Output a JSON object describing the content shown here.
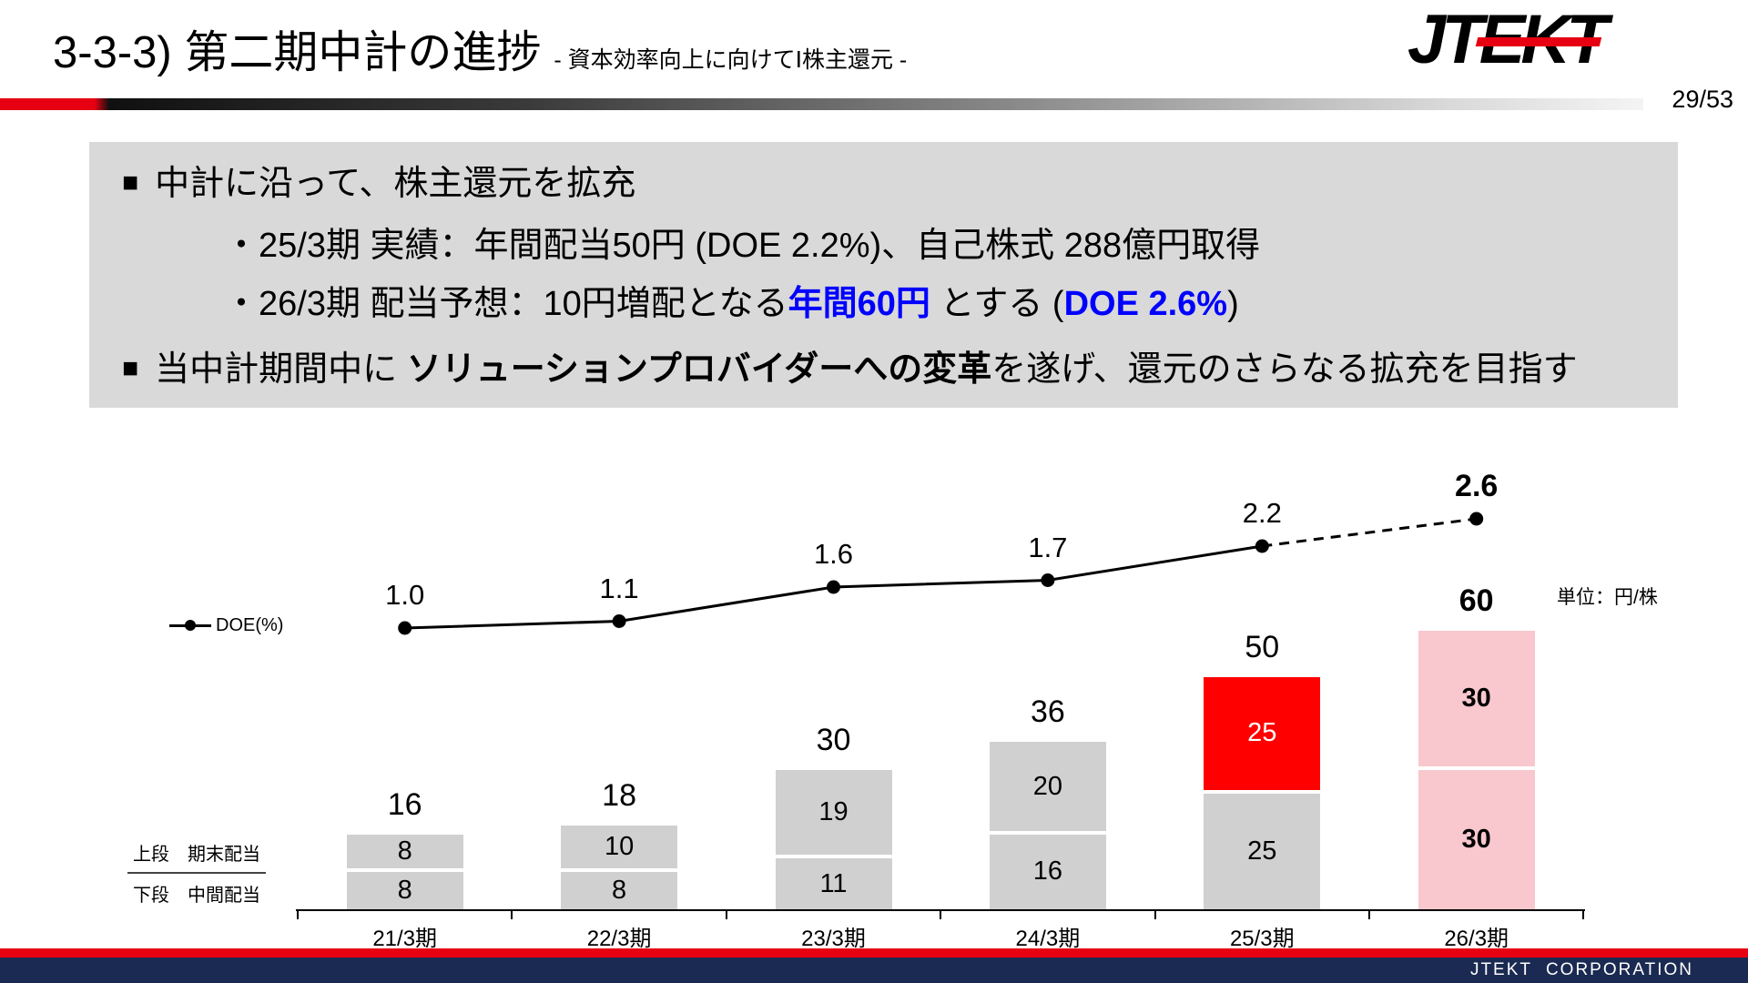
{
  "header": {
    "title": "3-3-3) 第二期中計の進捗",
    "subtitle": "- 資本効率向上に向けてⅠ株主還元 -",
    "page_number": "29/53",
    "logo_text": "JTEKT"
  },
  "summary": {
    "bullet_marker": "■",
    "line1": "中計に沿って、株主還元を拡充",
    "line2": "・25/3期 実績：年間配当50円 (DOE 2.2%)、自己株式 288億円取得",
    "line3": {
      "pre": "・26/3期 配当予想：10円増配となる",
      "highlight1": "年間60円",
      "mid": " とする (",
      "highlight2": "DOE 2.6%",
      "post": ")"
    },
    "line4": {
      "pre": "当中計期間中に ",
      "bold": "ソリューションプロバイダーへの変革",
      "post": "を遂げ、還元のさらなる拡充を目指す"
    },
    "highlight_color": "#0000ff"
  },
  "chart_data": {
    "type": "bar+line",
    "unit_label": "単位：円/株",
    "legend_label": "DOE(%)",
    "row_label_upper": "上段　期末配当",
    "row_label_lower": "下段　中間配当",
    "categories": [
      "21/3期",
      "22/3期",
      "23/3期",
      "24/3期",
      "25/3期",
      "26/3期"
    ],
    "default_bar_color": "#d0d0d0",
    "bars": [
      {
        "category": "21/3期",
        "lower": 8,
        "upper": 8,
        "total": "16"
      },
      {
        "category": "22/3期",
        "lower": 8,
        "upper": 10,
        "total": "18"
      },
      {
        "category": "23/3期",
        "lower": 11,
        "upper": 19,
        "total": "30"
      },
      {
        "category": "24/3期",
        "lower": 16,
        "upper": 20,
        "total": "36"
      },
      {
        "category": "25/3期",
        "lower": 25,
        "upper": 25,
        "total": "50",
        "upper_color": "#ff0000",
        "upper_text_color": "#ffffff"
      },
      {
        "category": "26/3期",
        "lower": 30,
        "upper": 30,
        "total": "60",
        "lower_color": "#f8c8ce",
        "upper_color": "#f8c8ce",
        "value_bold": true,
        "total_bold": true
      }
    ],
    "doe": {
      "name": "DOE(%)",
      "values": [
        1.0,
        1.1,
        1.6,
        1.7,
        2.2,
        2.6
      ],
      "labels": [
        "1.0",
        "1.1",
        "1.6",
        "1.7",
        "2.2",
        "2.6"
      ],
      "dashed_from_index": 4,
      "last_label_bold": true
    },
    "ylim_bars": [
      0,
      60
    ],
    "colors": {
      "bar_gray": "#d0d0d0",
      "bar_red": "#ff0000",
      "bar_pink": "#f8c8ce",
      "line_black": "#000000"
    }
  },
  "footer": {
    "company": "JTEKT CORPORATION",
    "accent_red": "#e60012",
    "bar_navy": "#1b2a52"
  }
}
